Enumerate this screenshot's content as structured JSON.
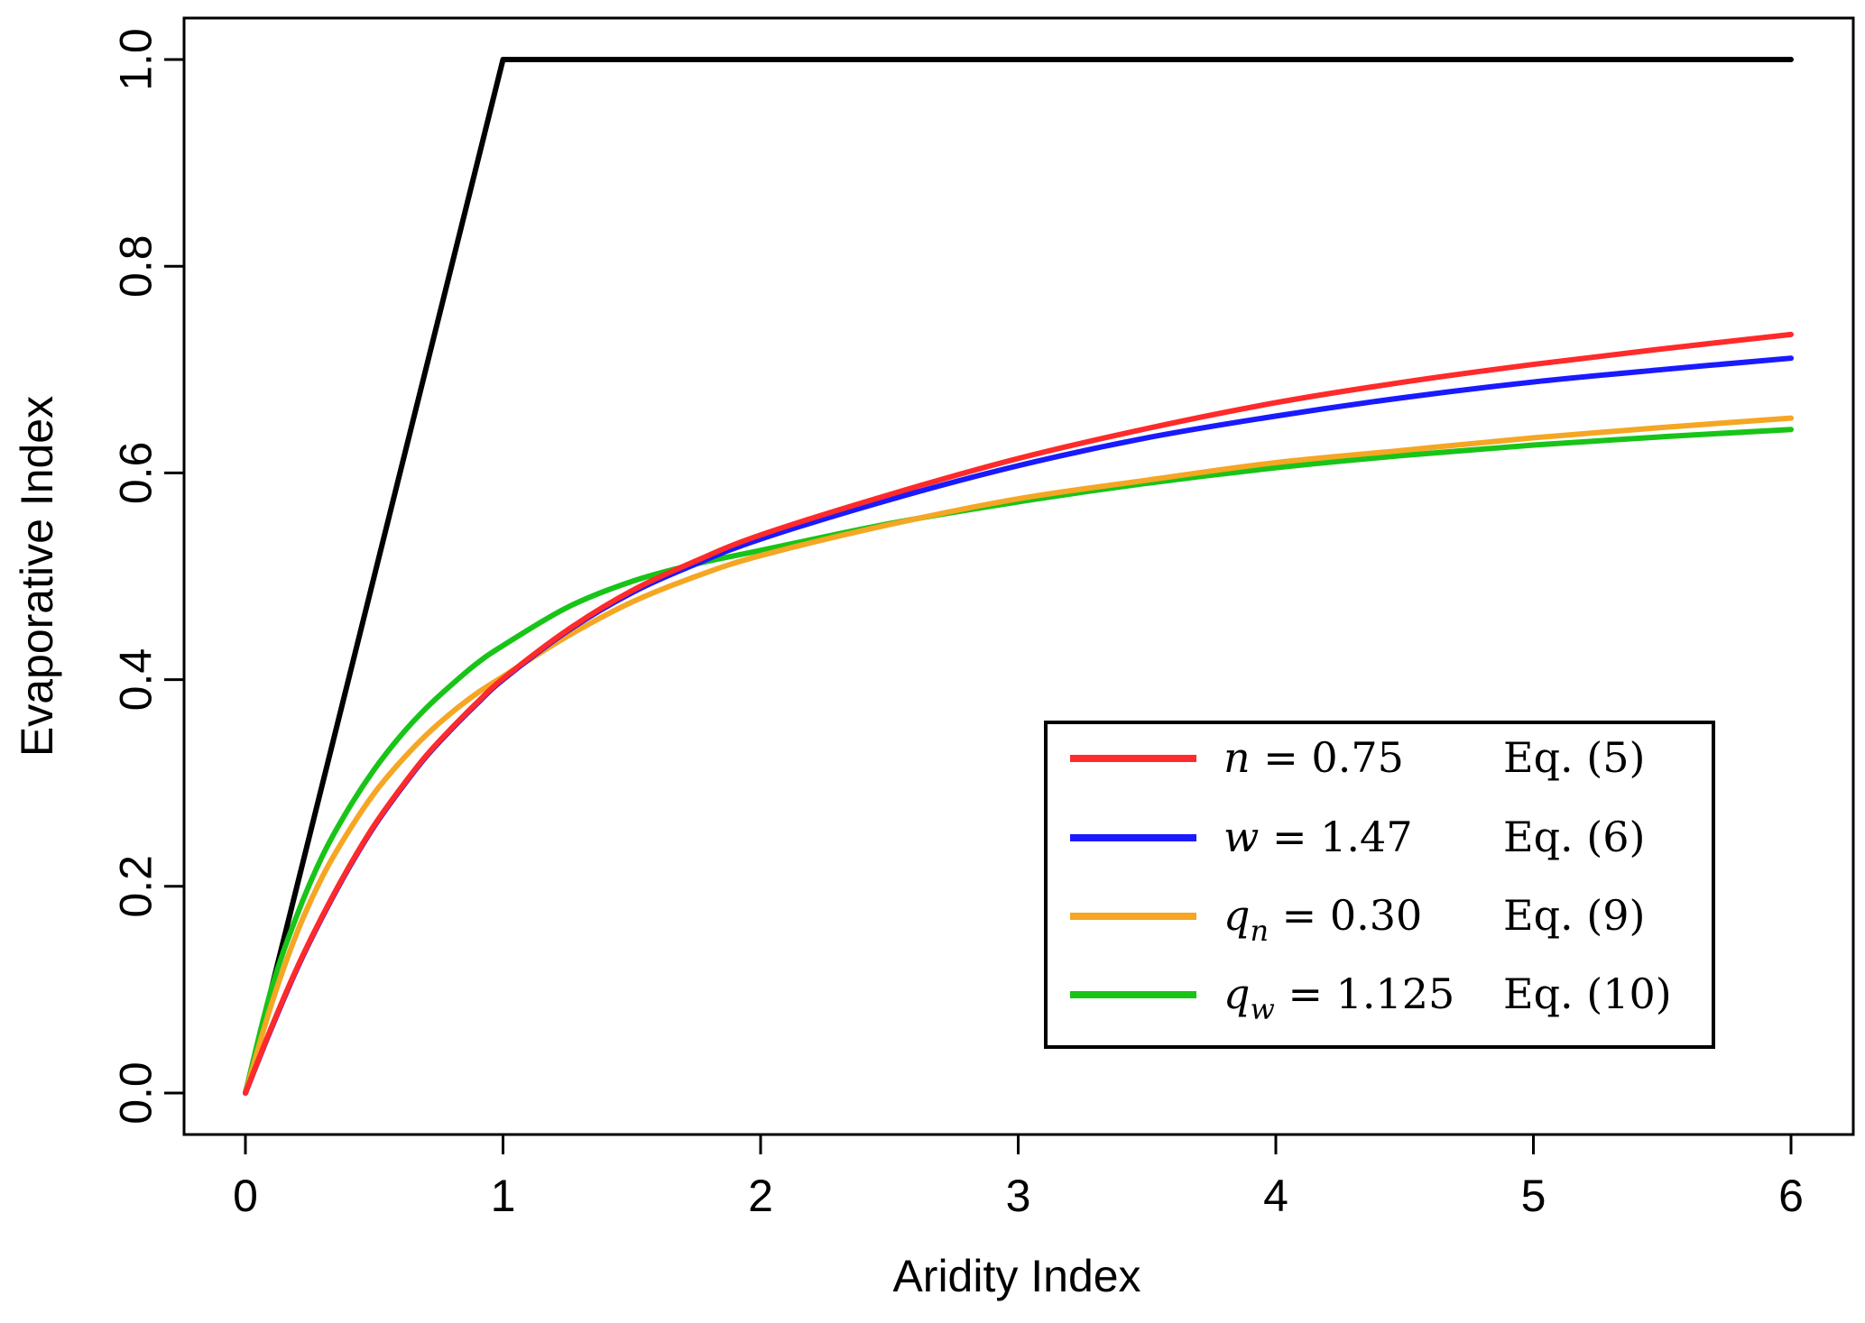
{
  "chart_data": {
    "type": "line",
    "title": "",
    "xlabel": "Aridity Index",
    "ylabel": "Evaporative Index",
    "xlim": [
      0,
      6
    ],
    "ylim": [
      0,
      1
    ],
    "x_ticks": [
      "0",
      "1",
      "2",
      "3",
      "4",
      "5",
      "6"
    ],
    "y_ticks": [
      "0.0",
      "0.2",
      "0.4",
      "0.6",
      "0.8",
      "1.0"
    ],
    "grid": false,
    "legend_position": "bottom-right",
    "series": [
      {
        "legend": false,
        "color": "#000000",
        "x": [
          0,
          1,
          6
        ],
        "y": [
          0,
          1,
          1
        ]
      },
      {
        "legend": true,
        "param_symbol": "n",
        "param_subscript": "",
        "param_value": "0.75",
        "equation": "Eq. (5)",
        "color": "#ff2a2a",
        "x": [
          0,
          0.1,
          0.2,
          0.3,
          0.4,
          0.5,
          0.6,
          0.7,
          0.8,
          0.9,
          1.0,
          1.25,
          1.5,
          1.75,
          2.0,
          2.5,
          3.0,
          3.5,
          4.0,
          4.5,
          5.0,
          5.5,
          6.0
        ],
        "y": [
          0,
          0.063,
          0.121,
          0.172,
          0.218,
          0.259,
          0.294,
          0.326,
          0.353,
          0.378,
          0.401,
          0.448,
          0.486,
          0.515,
          0.54,
          0.579,
          0.614,
          0.643,
          0.668,
          0.688,
          0.705,
          0.72,
          0.734
        ]
      },
      {
        "legend": true,
        "param_symbol": "w",
        "param_subscript": "",
        "param_value": "1.47",
        "equation": "Eq. (6)",
        "color": "#1a1aff",
        "x": [
          0,
          0.1,
          0.2,
          0.3,
          0.4,
          0.5,
          0.6,
          0.7,
          0.8,
          0.9,
          1.0,
          1.25,
          1.5,
          1.75,
          2.0,
          2.5,
          3.0,
          3.5,
          4.0,
          4.5,
          5.0,
          5.5,
          6.0
        ],
        "y": [
          0,
          0.062,
          0.12,
          0.171,
          0.217,
          0.258,
          0.293,
          0.325,
          0.352,
          0.377,
          0.4,
          0.447,
          0.484,
          0.512,
          0.536,
          0.574,
          0.607,
          0.634,
          0.655,
          0.673,
          0.688,
          0.7,
          0.711
        ]
      },
      {
        "legend": true,
        "param_symbol": "q",
        "param_subscript": "n",
        "param_value": "0.30",
        "equation": "Eq. (9)",
        "color": "#f5a623",
        "x": [
          0,
          0.1,
          0.2,
          0.3,
          0.4,
          0.5,
          0.6,
          0.7,
          0.8,
          0.9,
          1.0,
          1.25,
          1.5,
          1.75,
          2.0,
          2.5,
          3.0,
          3.5,
          4.0,
          4.5,
          5.0,
          5.5,
          6.0
        ],
        "y": [
          0,
          0.085,
          0.155,
          0.21,
          0.253,
          0.29,
          0.32,
          0.346,
          0.368,
          0.387,
          0.403,
          0.442,
          0.475,
          0.5,
          0.52,
          0.55,
          0.575,
          0.593,
          0.61,
          0.622,
          0.634,
          0.644,
          0.653
        ]
      },
      {
        "legend": true,
        "param_symbol": "q",
        "param_subscript": "w",
        "param_value": "1.125",
        "equation": "Eq. (10)",
        "color": "#18c418",
        "x": [
          0,
          0.1,
          0.2,
          0.3,
          0.4,
          0.5,
          0.6,
          0.7,
          0.8,
          0.9,
          1.0,
          1.25,
          1.5,
          1.75,
          2.0,
          2.5,
          3.0,
          3.5,
          4.0,
          4.5,
          5.0,
          5.5,
          6.0
        ],
        "y": [
          0,
          0.1,
          0.172,
          0.23,
          0.275,
          0.313,
          0.345,
          0.372,
          0.395,
          0.416,
          0.433,
          0.47,
          0.495,
          0.512,
          0.525,
          0.551,
          0.572,
          0.59,
          0.605,
          0.617,
          0.627,
          0.635,
          0.642
        ]
      }
    ]
  }
}
